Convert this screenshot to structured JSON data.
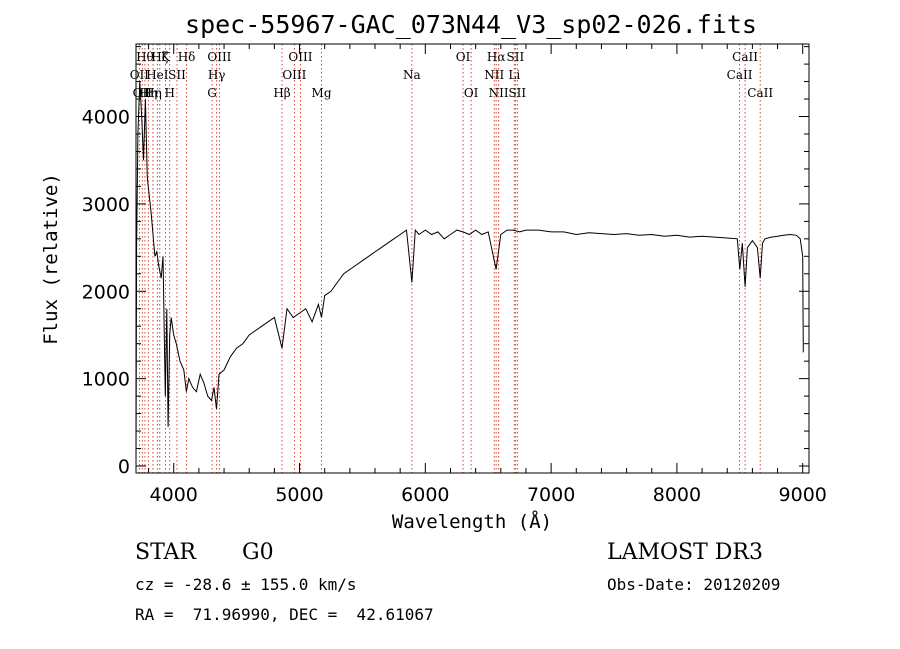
{
  "chart_data": {
    "type": "line",
    "title": "spec-55967-GAC_073N44_V3_sp02-026.fits",
    "xlabel": "Wavelength (Å)",
    "ylabel": "Flux (relative)",
    "xlim": [
      3700,
      9050
    ],
    "ylim": [
      -80,
      4830
    ],
    "x_ticks": [
      4000,
      5000,
      6000,
      7000,
      8000,
      9000
    ],
    "y_ticks": [
      0,
      1000,
      2000,
      3000,
      4000
    ],
    "series": [
      {
        "name": "flux",
        "color": "#000000",
        "x": [
          3700,
          3705,
          3715,
          3730,
          3745,
          3760,
          3775,
          3790,
          3805,
          3820,
          3835,
          3850,
          3865,
          3880,
          3900,
          3915,
          3933,
          3945,
          3955,
          3968,
          3980,
          4000,
          4020,
          4050,
          4080,
          4101,
          4120,
          4150,
          4180,
          4210,
          4240,
          4270,
          4300,
          4320,
          4340,
          4360,
          4400,
          4450,
          4500,
          4550,
          4600,
          4650,
          4700,
          4750,
          4800,
          4861,
          4900,
          4950,
          5000,
          5050,
          5100,
          5150,
          5175,
          5200,
          5250,
          5300,
          5350,
          5400,
          5450,
          5500,
          5550,
          5600,
          5650,
          5700,
          5750,
          5800,
          5850,
          5893,
          5920,
          5950,
          6000,
          6050,
          6100,
          6150,
          6200,
          6250,
          6300,
          6350,
          6400,
          6450,
          6500,
          6563,
          6600,
          6650,
          6700,
          6750,
          6800,
          6900,
          7000,
          7100,
          7200,
          7300,
          7400,
          7500,
          7600,
          7700,
          7800,
          7900,
          8000,
          8100,
          8200,
          8300,
          8400,
          8480,
          8500,
          8520,
          8542,
          8560,
          8600,
          8640,
          8662,
          8680,
          8700,
          8750,
          8800,
          8850,
          8900,
          8950,
          8980,
          9000,
          9005
        ],
        "values": [
          0,
          2500,
          3800,
          4400,
          4000,
          3500,
          4200,
          3300,
          3100,
          2900,
          2650,
          2400,
          2450,
          2300,
          2150,
          2400,
          800,
          1800,
          450,
          1500,
          1700,
          1500,
          1400,
          1200,
          1100,
          850,
          1000,
          900,
          850,
          1050,
          950,
          800,
          750,
          900,
          650,
          1050,
          1100,
          1250,
          1350,
          1400,
          1500,
          1550,
          1600,
          1650,
          1700,
          1350,
          1800,
          1700,
          1750,
          1800,
          1650,
          1850,
          1700,
          1950,
          2000,
          2100,
          2200,
          2250,
          2300,
          2350,
          2400,
          2450,
          2500,
          2550,
          2600,
          2650,
          2700,
          2100,
          2700,
          2650,
          2700,
          2650,
          2680,
          2600,
          2650,
          2700,
          2680,
          2650,
          2700,
          2650,
          2680,
          2250,
          2650,
          2700,
          2700,
          2680,
          2700,
          2700,
          2680,
          2680,
          2650,
          2670,
          2660,
          2650,
          2660,
          2640,
          2650,
          2630,
          2640,
          2620,
          2630,
          2620,
          2610,
          2600,
          2250,
          2550,
          2050,
          2500,
          2580,
          2500,
          2150,
          2550,
          2600,
          2620,
          2630,
          2640,
          2650,
          2640,
          2600,
          2400,
          1300
        ]
      }
    ],
    "lines": [
      {
        "wl": 3727,
        "label": "OII",
        "row": 1
      },
      {
        "wl": 3750,
        "label": "OII",
        "row": 2
      },
      {
        "wl": 3771,
        "label": "Hθ",
        "row": 0
      },
      {
        "wl": 3798,
        "label": "Hη",
        "row": 2
      },
      {
        "wl": 3835,
        "label": "Hη",
        "row": 2
      },
      {
        "wl": 3870,
        "label": "HeI",
        "row": 1
      },
      {
        "wl": 3889,
        "label": "Hζ",
        "row": 0
      },
      {
        "wl": 3934,
        "label": "K",
        "row": 0
      },
      {
        "wl": 3968,
        "label": "H",
        "row": 2
      },
      {
        "wl": 4026,
        "label": "SII",
        "row": 1
      },
      {
        "wl": 4102,
        "label": "Hδ",
        "row": 0
      },
      {
        "wl": 4305,
        "label": "G",
        "row": 2
      },
      {
        "wl": 4341,
        "label": "Hγ",
        "row": 1
      },
      {
        "wl": 4363,
        "label": "OIII",
        "row": 0
      },
      {
        "wl": 4861,
        "label": "Hβ",
        "row": 2
      },
      {
        "wl": 4959,
        "label": "OIII",
        "row": 1
      },
      {
        "wl": 5007,
        "label": "OIII",
        "row": 0
      },
      {
        "wl": 5175,
        "label": "Mg",
        "row": 2
      },
      {
        "wl": 5893,
        "label": "Na",
        "row": 1
      },
      {
        "wl": 6300,
        "label": "OI",
        "row": 0
      },
      {
        "wl": 6364,
        "label": "OI",
        "row": 2
      },
      {
        "wl": 6548,
        "label": "NII",
        "row": 1
      },
      {
        "wl": 6563,
        "label": "Hα",
        "row": 0
      },
      {
        "wl": 6583,
        "label": "NII",
        "row": 2
      },
      {
        "wl": 6707,
        "label": "Li",
        "row": 1
      },
      {
        "wl": 6716,
        "label": "SII",
        "row": 0
      },
      {
        "wl": 6731,
        "label": "SII",
        "row": 2
      },
      {
        "wl": 8498,
        "label": "CaII",
        "row": 1
      },
      {
        "wl": 8542,
        "label": "CaII",
        "row": 0
      },
      {
        "wl": 8662,
        "label": "CaII",
        "row": 2
      }
    ]
  },
  "info": {
    "object_class": "STAR",
    "subclass": "G0",
    "survey": "LAMOST DR3",
    "velocity": "cz = -28.6 ± 155.0 km/s",
    "obs_date": "Obs-Date: 20120209",
    "coords": "RA =  71.96990, DEC =  42.61067"
  }
}
